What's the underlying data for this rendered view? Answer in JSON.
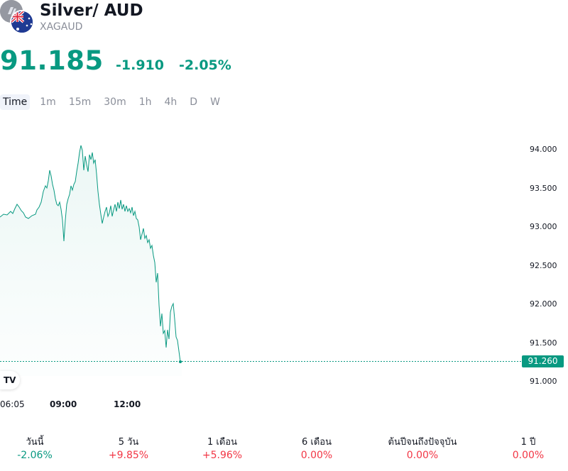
{
  "header": {
    "title": "Silver/ AUD",
    "ticker": "XAGAUD",
    "price": "91.185",
    "change": "-1.910",
    "change_pct": "-2.05%"
  },
  "tabs": [
    "Time",
    "1m",
    "15m",
    "30m",
    "1h",
    "4h",
    "D",
    "W"
  ],
  "chart_data": {
    "type": "area",
    "y_ticks": [
      "94.000",
      "93.500",
      "93.000",
      "92.500",
      "92.000",
      "91.500",
      "91.000"
    ],
    "x_ticks": [
      "06:05",
      "09:00",
      "12:00"
    ],
    "last_price_label": "91.260",
    "colors": {
      "line": "#089981",
      "fill": "#089981"
    }
  },
  "performance": [
    {
      "label": "วันนี้",
      "value": "-2.06%",
      "dir": "neg"
    },
    {
      "label": "5 วัน",
      "value": "+9.85%",
      "dir": "pos"
    },
    {
      "label": "1 เดือน",
      "value": "+5.96%",
      "dir": "pos"
    },
    {
      "label": "6 เดือน",
      "value": "0.00%",
      "dir": "pos"
    },
    {
      "label": "ต้นปีจนถึงปัจจุบัน",
      "value": "0.00%",
      "dir": "pos"
    },
    {
      "label": "1 ปี",
      "value": "0.00%",
      "dir": "pos"
    }
  ]
}
